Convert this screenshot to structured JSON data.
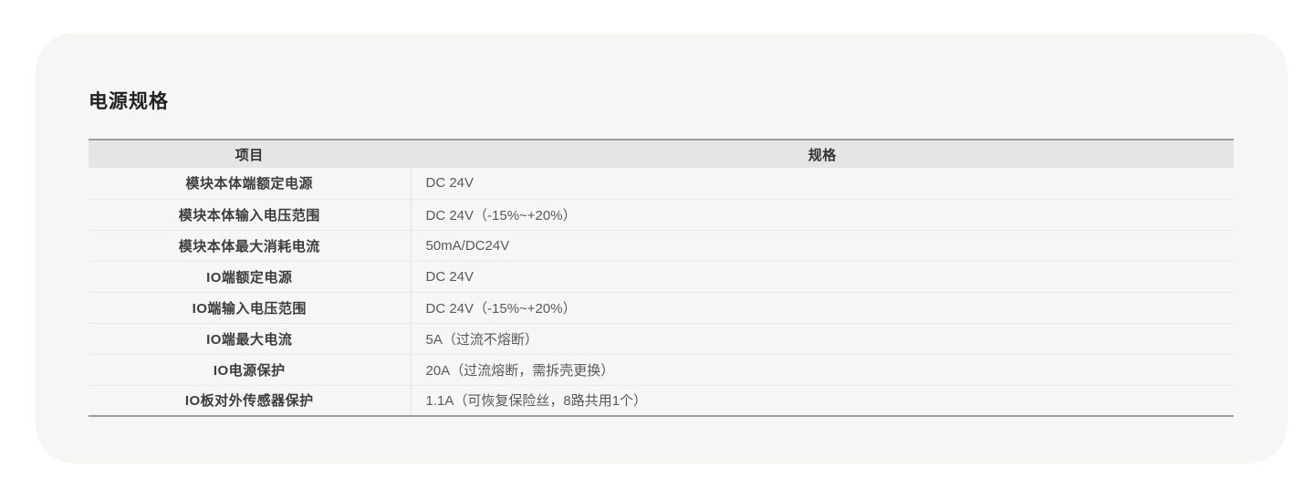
{
  "theme": {
    "card-bg": "#f6f6f5",
    "header-bg": "#e5e5e5",
    "strong-line": "#9c9c9c",
    "light-line": "#e9e9e7",
    "divider": "#e2e2e0",
    "title-color": "#222222",
    "item-color": "#3d3d3d",
    "spec-color": "#595959"
  },
  "page": {
    "title": "电源规格"
  },
  "table": {
    "headers": [
      "项目",
      "规格"
    ],
    "rows": [
      {
        "item": "模块本体端额定电源",
        "spec": "DC 24V"
      },
      {
        "item": "模块本体输入电压范围",
        "spec": "DC 24V（-15%~+20%）"
      },
      {
        "item": "模块本体最大消耗电流",
        "spec": "50mA/DC24V"
      },
      {
        "item": "IO端额定电源",
        "spec": "DC 24V"
      },
      {
        "item": "IO端输入电压范围",
        "spec": "DC 24V（-15%~+20%）"
      },
      {
        "item": "IO端最大电流",
        "spec": "5A（过流不熔断）"
      },
      {
        "item": "IO电源保护",
        "spec": "20A（过流熔断，需拆壳更换）"
      },
      {
        "item": "IO板对外传感器保护",
        "spec": "1.1A（可恢复保险丝，8路共用1个）"
      }
    ]
  }
}
